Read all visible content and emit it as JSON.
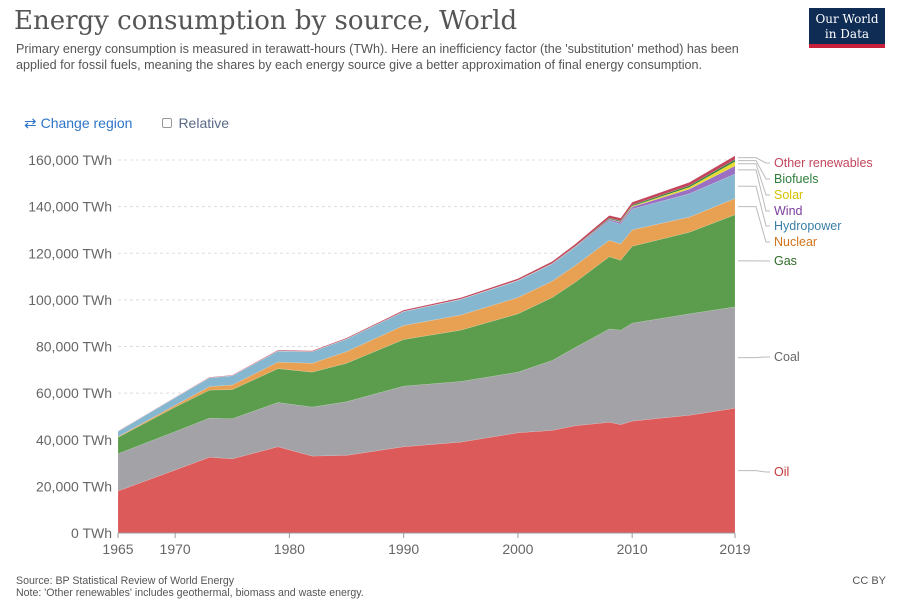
{
  "header": {
    "title": "Energy consumption by source, World",
    "subtitle": "Primary energy consumption is measured in terawatt-hours (TWh). Here an inefficiency factor (the 'substitution' method) has been applied for fossil fuels, meaning the shares by each energy source give a better approximation of final energy consumption.",
    "logo_line1": "Our World",
    "logo_line2": "in Data"
  },
  "controls": {
    "change_region": "Change region",
    "relative": "Relative"
  },
  "footer": {
    "source": "Source: BP Statistical Review of World Energy",
    "note": "Note: 'Other renewables' includes geothermal, biomass and waste energy.",
    "license": "CC BY"
  },
  "chart_data": {
    "type": "area",
    "stacked": true,
    "title": "Energy consumption by source, World",
    "xlim": [
      1965,
      2019
    ],
    "ylim": [
      0,
      160000
    ],
    "y_unit": "TWh",
    "x_ticks": [
      "1965",
      "1970",
      "1980",
      "1990",
      "2000",
      "2010",
      "2019"
    ],
    "y_ticks": [
      "0 TWh",
      "20,000 TWh",
      "40,000 TWh",
      "60,000 TWh",
      "80,000 TWh",
      "100,000 TWh",
      "120,000 TWh",
      "140,000 TWh",
      "160,000 TWh"
    ],
    "x": [
      1965,
      1970,
      1973,
      1975,
      1979,
      1982,
      1985,
      1990,
      1995,
      2000,
      2003,
      2005,
      2008,
      2009,
      2010,
      2015,
      2019
    ],
    "series": [
      {
        "name": "Oil",
        "color": "#dd5a5a",
        "values": [
          18000,
          27000,
          32500,
          31800,
          37000,
          33000,
          33300,
          37000,
          39000,
          43000,
          44000,
          46000,
          47500,
          46500,
          48000,
          50500,
          53500
        ]
      },
      {
        "name": "Coal",
        "color": "#a2a2a7",
        "values": [
          16000,
          16500,
          16800,
          17200,
          19000,
          21000,
          23000,
          26000,
          26000,
          26000,
          30000,
          33500,
          40000,
          40500,
          42000,
          43500,
          43500
        ]
      },
      {
        "name": "Gas",
        "color": "#5b9d4c",
        "values": [
          7000,
          10500,
          12000,
          12500,
          14500,
          15000,
          16500,
          20000,
          22000,
          25000,
          27000,
          28000,
          31000,
          30000,
          33000,
          35000,
          39500
        ]
      },
      {
        "name": "Nuclear",
        "color": "#e8a153",
        "values": [
          300,
          800,
          1500,
          2000,
          2800,
          3800,
          5000,
          6000,
          6500,
          7000,
          7000,
          7200,
          7000,
          7000,
          7000,
          6500,
          7000
        ]
      },
      {
        "name": "Hydropower",
        "color": "#86b7d0",
        "values": [
          2300,
          3300,
          3800,
          4000,
          4800,
          5000,
          5400,
          6000,
          6700,
          7200,
          7300,
          7700,
          8500,
          8500,
          9000,
          10000,
          10500
        ]
      },
      {
        "name": "Wind",
        "color": "#9b6fc2",
        "values": [
          0,
          0,
          0,
          0,
          0,
          0,
          0,
          0,
          50,
          100,
          200,
          300,
          600,
          800,
          900,
          2000,
          3500
        ]
      },
      {
        "name": "Solar",
        "color": "#e8dc2c",
        "values": [
          0,
          0,
          0,
          0,
          0,
          0,
          0,
          0,
          0,
          10,
          20,
          40,
          100,
          150,
          300,
          800,
          1800
        ]
      },
      {
        "name": "Biofuels",
        "color": "#2f7d3b",
        "values": [
          0,
          0,
          0,
          0,
          20,
          50,
          60,
          80,
          80,
          100,
          150,
          200,
          400,
          450,
          500,
          700,
          900
        ]
      },
      {
        "name": "Other renewables",
        "color": "#c2455b",
        "values": [
          100,
          150,
          200,
          200,
          300,
          350,
          400,
          500,
          600,
          700,
          800,
          900,
          1100,
          1150,
          1200,
          1400,
          1600
        ]
      }
    ],
    "label_colors": {
      "Other renewables": "#c2455b",
      "Biofuels": "#2f7d3b",
      "Solar": "#d6c200",
      "Wind": "#7c3f9e",
      "Hydropower": "#3a7fa6",
      "Nuclear": "#d2731a",
      "Gas": "#2f6b28",
      "Coal": "#666666",
      "Oil": "#c43a3a"
    }
  }
}
